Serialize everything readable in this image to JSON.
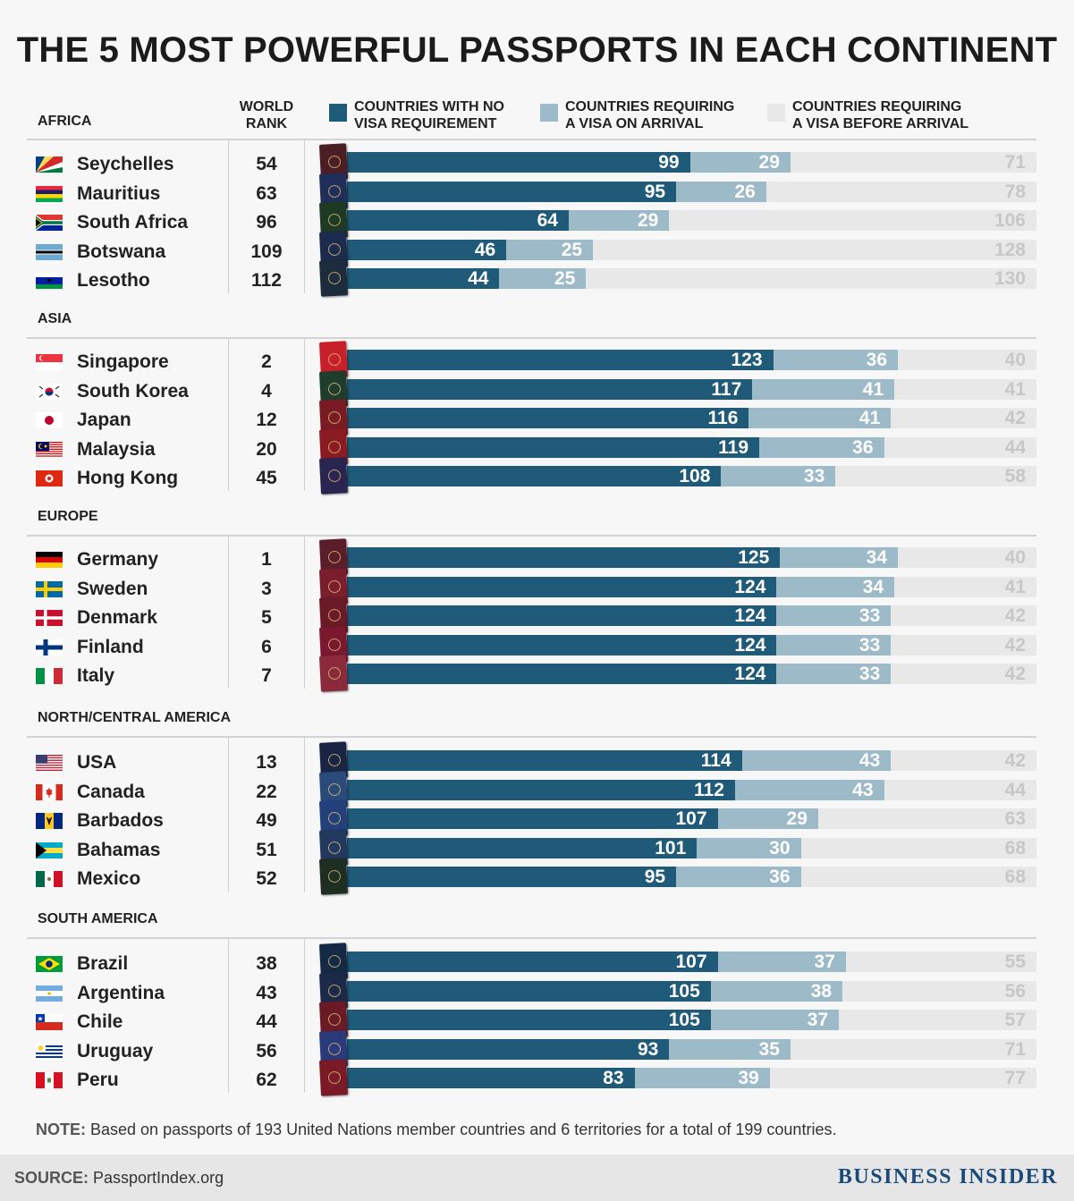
{
  "title": "THE 5 MOST POWERFUL PASSPORTS IN EACH CONTINENT",
  "rank_header": [
    "WORLD",
    "RANK"
  ],
  "legend": [
    {
      "lines": [
        "COUNTRIES WITH NO",
        "VISA REQUIREMENT"
      ],
      "color": "#1f5a78"
    },
    {
      "lines": [
        "COUNTRIES REQUIRING",
        "A VISA ON ARRIVAL"
      ],
      "color": "#9cbac8"
    },
    {
      "lines": [
        "COUNTRIES REQUIRING",
        "A VISA BEFORE ARRIVAL"
      ],
      "color": "#e8e8e8"
    }
  ],
  "chart_data": {
    "type": "bar",
    "stacked": true,
    "orientation": "horizontal",
    "series_names": [
      "COUNTRIES WITH NO VISA REQUIREMENT",
      "COUNTRIES REQUIRING A VISA ON ARRIVAL",
      "COUNTRIES REQUIRING A VISA BEFORE ARRIVAL"
    ],
    "total": 199,
    "groups": [
      {
        "continent": "AFRICA",
        "rows": [
          {
            "country": "Seychelles",
            "rank": 54,
            "no_visa": 99,
            "on_arrival": 29,
            "before_arrival": 71,
            "flag": "seychelles-flag",
            "passport_color": "#4a1e24"
          },
          {
            "country": "Mauritius",
            "rank": 63,
            "no_visa": 95,
            "on_arrival": 26,
            "before_arrival": 78,
            "flag": "mauritius-flag",
            "passport_color": "#1f2f5a"
          },
          {
            "country": "South Africa",
            "rank": 96,
            "no_visa": 64,
            "on_arrival": 29,
            "before_arrival": 106,
            "flag": "south-africa-flag",
            "passport_color": "#1f3a24"
          },
          {
            "country": "Botswana",
            "rank": 109,
            "no_visa": 46,
            "on_arrival": 25,
            "before_arrival": 128,
            "flag": "botswana-flag",
            "passport_color": "#1c2a4e"
          },
          {
            "country": "Lesotho",
            "rank": 112,
            "no_visa": 44,
            "on_arrival": 25,
            "before_arrival": 130,
            "flag": "lesotho-flag",
            "passport_color": "#1d2c3c"
          }
        ]
      },
      {
        "continent": "ASIA",
        "rows": [
          {
            "country": "Singapore",
            "rank": 2,
            "no_visa": 123,
            "on_arrival": 36,
            "before_arrival": 40,
            "flag": "singapore-flag",
            "passport_color": "#c8202a"
          },
          {
            "country": "South Korea",
            "rank": 4,
            "no_visa": 117,
            "on_arrival": 41,
            "before_arrival": 41,
            "flag": "south-korea-flag",
            "passport_color": "#1e3d2c"
          },
          {
            "country": "Japan",
            "rank": 12,
            "no_visa": 116,
            "on_arrival": 41,
            "before_arrival": 42,
            "flag": "japan-flag",
            "passport_color": "#7a1a22"
          },
          {
            "country": "Malaysia",
            "rank": 20,
            "no_visa": 119,
            "on_arrival": 36,
            "before_arrival": 44,
            "flag": "malaysia-flag",
            "passport_color": "#8a1b22"
          },
          {
            "country": "Hong Kong",
            "rank": 45,
            "no_visa": 108,
            "on_arrival": 33,
            "before_arrival": 58,
            "flag": "hong-kong-flag",
            "passport_color": "#2a2450"
          }
        ]
      },
      {
        "continent": "EUROPE",
        "rows": [
          {
            "country": "Germany",
            "rank": 1,
            "no_visa": 125,
            "on_arrival": 34,
            "before_arrival": 40,
            "flag": "germany-flag",
            "passport_color": "#5a1e2a"
          },
          {
            "country": "Sweden",
            "rank": 3,
            "no_visa": 124,
            "on_arrival": 34,
            "before_arrival": 41,
            "flag": "sweden-flag",
            "passport_color": "#7a1e2e"
          },
          {
            "country": "Denmark",
            "rank": 5,
            "no_visa": 124,
            "on_arrival": 33,
            "before_arrival": 42,
            "flag": "denmark-flag",
            "passport_color": "#6a1a26"
          },
          {
            "country": "Finland",
            "rank": 6,
            "no_visa": 124,
            "on_arrival": 33,
            "before_arrival": 42,
            "flag": "finland-flag",
            "passport_color": "#7a1830"
          },
          {
            "country": "Italy",
            "rank": 7,
            "no_visa": 124,
            "on_arrival": 33,
            "before_arrival": 42,
            "flag": "italy-flag",
            "passport_color": "#8a2a3a"
          }
        ]
      },
      {
        "continent": "NORTH/CENTRAL AMERICA",
        "rows": [
          {
            "country": "USA",
            "rank": 13,
            "no_visa": 114,
            "on_arrival": 43,
            "before_arrival": 42,
            "flag": "usa-flag",
            "passport_color": "#1a2444"
          },
          {
            "country": "Canada",
            "rank": 22,
            "no_visa": 112,
            "on_arrival": 43,
            "before_arrival": 44,
            "flag": "canada-flag",
            "passport_color": "#2a4a7a"
          },
          {
            "country": "Barbados",
            "rank": 49,
            "no_visa": 107,
            "on_arrival": 29,
            "before_arrival": 63,
            "flag": "barbados-flag",
            "passport_color": "#24407a"
          },
          {
            "country": "Bahamas",
            "rank": 51,
            "no_visa": 101,
            "on_arrival": 30,
            "before_arrival": 68,
            "flag": "bahamas-flag",
            "passport_color": "#23385e"
          },
          {
            "country": "Mexico",
            "rank": 52,
            "no_visa": 95,
            "on_arrival": 36,
            "before_arrival": 68,
            "flag": "mexico-flag",
            "passport_color": "#1e2e22"
          }
        ]
      },
      {
        "continent": "SOUTH AMERICA",
        "rows": [
          {
            "country": "Brazil",
            "rank": 38,
            "no_visa": 107,
            "on_arrival": 37,
            "before_arrival": 55,
            "flag": "brazil-flag",
            "passport_color": "#142a44"
          },
          {
            "country": "Argentina",
            "rank": 43,
            "no_visa": 105,
            "on_arrival": 38,
            "before_arrival": 56,
            "flag": "argentina-flag",
            "passport_color": "#1c2a4a"
          },
          {
            "country": "Chile",
            "rank": 44,
            "no_visa": 105,
            "on_arrival": 37,
            "before_arrival": 57,
            "flag": "chile-flag",
            "passport_color": "#6a1a24"
          },
          {
            "country": "Uruguay",
            "rank": 56,
            "no_visa": 93,
            "on_arrival": 35,
            "before_arrival": 71,
            "flag": "uruguay-flag",
            "passport_color": "#2a3a7a"
          },
          {
            "country": "Peru",
            "rank": 62,
            "no_visa": 83,
            "on_arrival": 39,
            "before_arrival": 77,
            "flag": "peru-flag",
            "passport_color": "#7a1a26"
          }
        ]
      }
    ]
  },
  "note": {
    "label": "NOTE:",
    "text": " Based on passports of 193 United Nations member countries and 6 territories for a total of 199 countries."
  },
  "source": {
    "label": "SOURCE:",
    "text": " PassportIndex.org"
  },
  "brand": "BUSINESS INSIDER"
}
